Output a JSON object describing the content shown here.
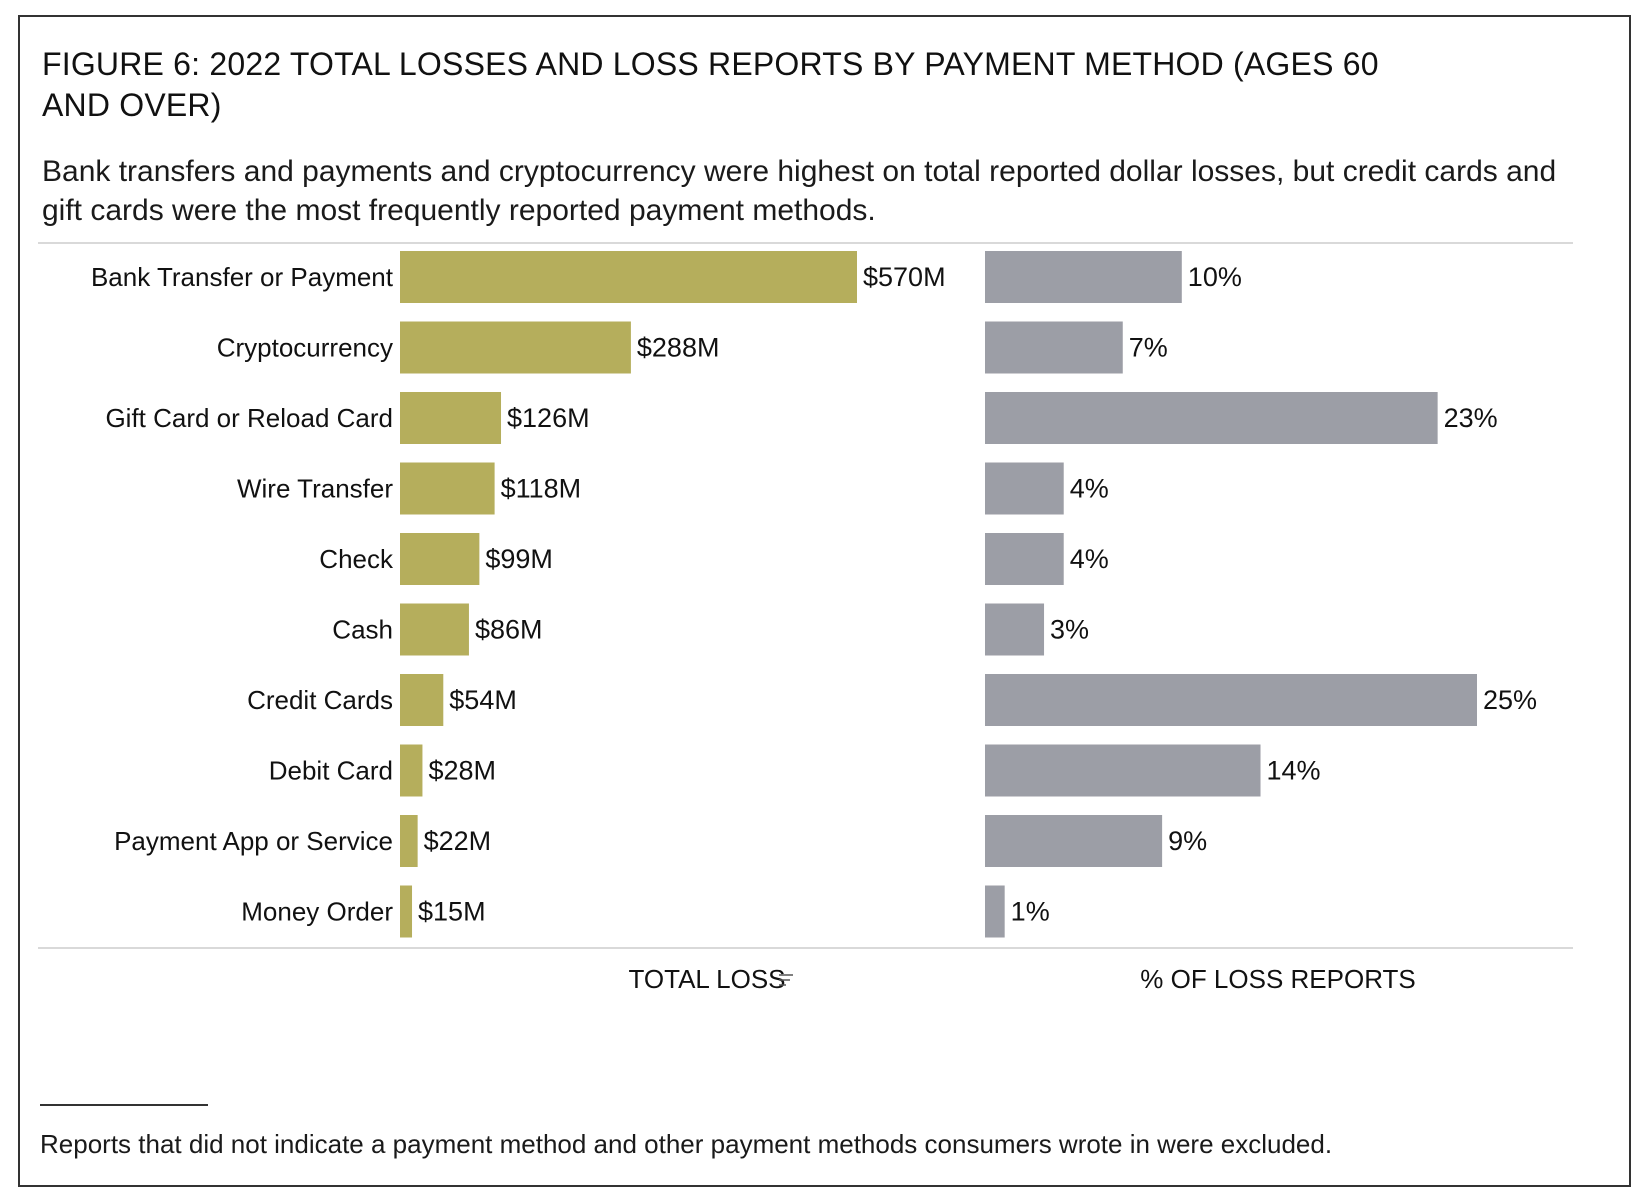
{
  "figure": {
    "title": "FIGURE 6: 2022 TOTAL LOSSES AND LOSS REPORTS BY PAYMENT METHOD (AGES 60 AND OVER)",
    "subtitle": "Bank transfers and payments and cryptocurrency were highest on total reported dollar losses, but credit cards and gift cards were the most frequently reported payment methods.",
    "footnote": "Reports that did not indicate a payment method and other payment methods consumers wrote in were excluded."
  },
  "colors": {
    "loss_bar": "#b5ae5c",
    "reports_bar": "#9c9ea6",
    "rule": "#d9d9d9"
  },
  "chart_data": [
    {
      "type": "bar",
      "orientation": "horizontal",
      "title": "TOTAL LOSS",
      "xlabel": "TOTAL LOSS",
      "unit": "$M",
      "categories": [
        "Bank Transfer or Payment",
        "Cryptocurrency",
        "Gift Card or Reload Card",
        "Wire Transfer",
        "Check",
        "Cash",
        "Credit Cards",
        "Debit Card",
        "Payment App or Service",
        "Money Order"
      ],
      "values": [
        570,
        288,
        126,
        118,
        99,
        86,
        54,
        28,
        22,
        15
      ],
      "labels": [
        "$570M",
        "$288M",
        "$126M",
        "$118M",
        "$99M",
        "$86M",
        "$54M",
        "$28M",
        "$22M",
        "$15M"
      ],
      "xlim": [
        0,
        570
      ]
    },
    {
      "type": "bar",
      "orientation": "horizontal",
      "title": "% OF LOSS REPORTS",
      "xlabel": "% OF LOSS REPORTS",
      "unit": "%",
      "categories": [
        "Bank Transfer or Payment",
        "Cryptocurrency",
        "Gift Card or Reload Card",
        "Wire Transfer",
        "Check",
        "Cash",
        "Credit Cards",
        "Debit Card",
        "Payment App or Service",
        "Money Order"
      ],
      "values": [
        10,
        7,
        23,
        4,
        4,
        3,
        25,
        14,
        9,
        1
      ],
      "labels": [
        "10%",
        "7%",
        "23%",
        "4%",
        "4%",
        "3%",
        "25%",
        "14%",
        "9%",
        "1%"
      ],
      "xlim": [
        0,
        25
      ]
    }
  ]
}
